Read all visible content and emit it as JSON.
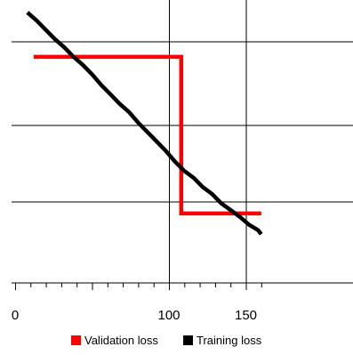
{
  "chart_data": {
    "type": "line",
    "title": "",
    "xlabel": "",
    "ylabel": "",
    "x_ticks": [
      "0",
      "100",
      "150"
    ],
    "xlim_visible": [
      0,
      160
    ],
    "grid": true,
    "legend_position": "bottom",
    "series": [
      {
        "name": "Validation loss",
        "color": "#ff0000",
        "style": "step",
        "points": [
          [
            12,
            0.815
          ],
          [
            108,
            0.815
          ],
          [
            108,
            0.232
          ],
          [
            160,
            0.232
          ]
        ]
      },
      {
        "name": "Training loss",
        "color": "#000000",
        "style": "line",
        "points": [
          [
            8,
            0.98
          ],
          [
            14,
            0.95
          ],
          [
            20,
            0.915
          ],
          [
            26,
            0.88
          ],
          [
            32,
            0.85
          ],
          [
            38,
            0.815
          ],
          [
            44,
            0.785
          ],
          [
            50,
            0.75
          ],
          [
            56,
            0.71
          ],
          [
            62,
            0.675
          ],
          [
            68,
            0.64
          ],
          [
            74,
            0.61
          ],
          [
            80,
            0.57
          ],
          [
            86,
            0.535
          ],
          [
            92,
            0.5
          ],
          [
            98,
            0.465
          ],
          [
            104,
            0.425
          ],
          [
            110,
            0.39
          ],
          [
            116,
            0.365
          ],
          [
            122,
            0.33
          ],
          [
            128,
            0.305
          ],
          [
            134,
            0.27
          ],
          [
            140,
            0.245
          ],
          [
            146,
            0.22
          ],
          [
            152,
            0.19
          ],
          [
            158,
            0.17
          ],
          [
            160,
            0.155
          ]
        ]
      }
    ]
  }
}
